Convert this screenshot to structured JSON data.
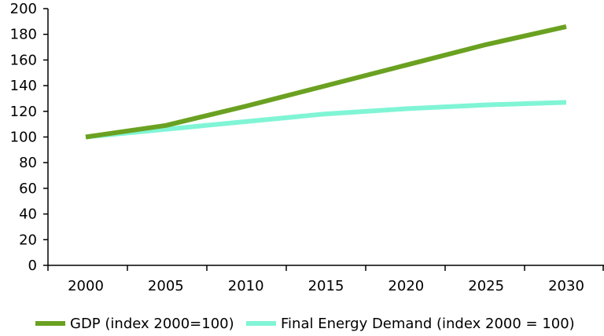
{
  "chart_data": {
    "type": "line",
    "x": [
      2000,
      2005,
      2010,
      2015,
      2020,
      2025,
      2030
    ],
    "x_ticks": [
      "2000",
      "2005",
      "2010",
      "2015",
      "2020",
      "2025",
      "2030"
    ],
    "y_ticks": [
      "0",
      "20",
      "40",
      "60",
      "80",
      "100",
      "120",
      "140",
      "160",
      "180",
      "200"
    ],
    "ylim": [
      0,
      200
    ],
    "grid": false,
    "legend_position": "bottom",
    "series": [
      {
        "name": "GDP (index 2000=100)",
        "values": [
          100,
          109,
          124,
          140,
          156,
          172,
          186
        ],
        "color": "#6aa121"
      },
      {
        "name": "Final Energy Demand (index 2000 = 100)",
        "values": [
          100,
          106,
          112,
          118,
          122,
          125,
          127
        ],
        "color": "#80f5d5"
      }
    ]
  }
}
